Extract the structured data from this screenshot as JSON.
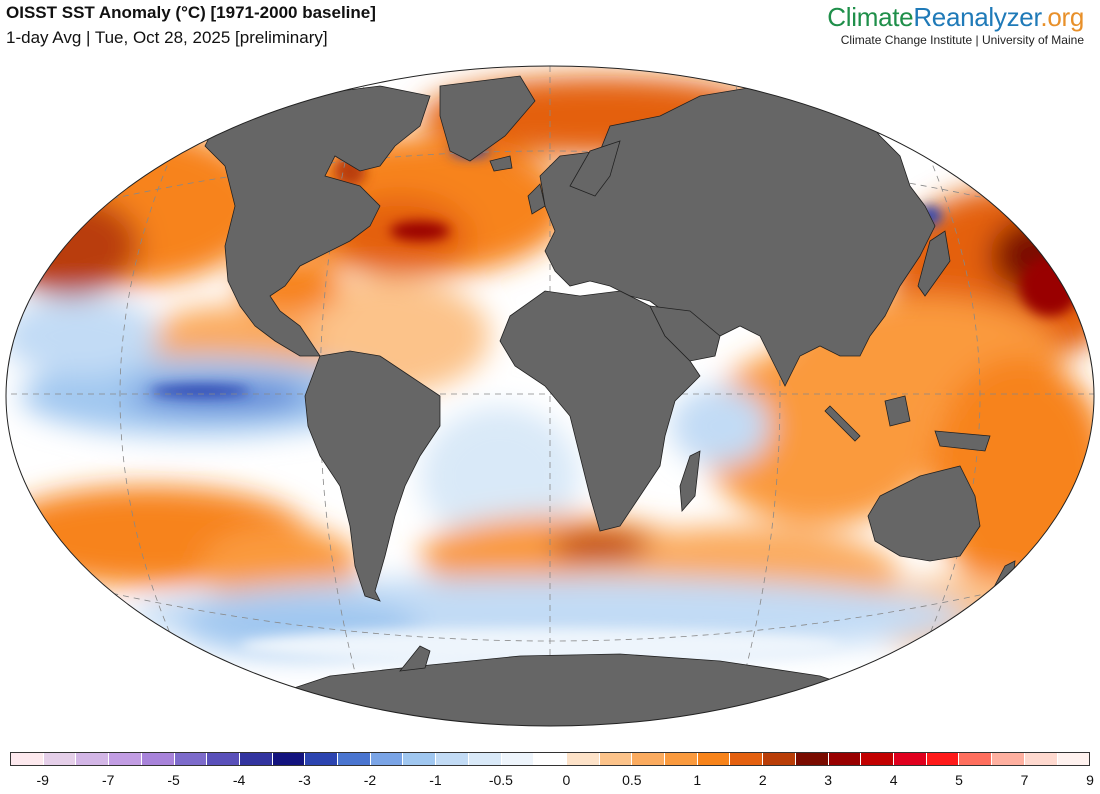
{
  "header": {
    "title": "OISST SST Anomaly (°C) [1971-2000 baseline]",
    "subtitle": "1-day Avg | Tue, Oct 28, 2025 [preliminary]",
    "brand_part1": "Climate",
    "brand_part2": "Reanalyzer",
    "brand_part3": ".org",
    "affiliation": "Climate Change Institute | University of Maine"
  },
  "colors": {
    "land": "#666666",
    "ocean_neutral": "#ffffff",
    "brand_green": "#1f8f4a",
    "brand_blue": "#1f7ab8",
    "brand_orange": "#e8902a"
  },
  "legend": {
    "swatches": [
      "#fde9ee",
      "#e5cfe9",
      "#d3b6e6",
      "#c29de3",
      "#a883da",
      "#7d6bcb",
      "#5a50ba",
      "#32349f",
      "#13137e",
      "#2c44b0",
      "#4a75d0",
      "#7aa4e6",
      "#a0c7f0",
      "#c2dbf5",
      "#d9e9f8",
      "#eef5fc",
      "#ffffff",
      "#fde2c8",
      "#fcc38a",
      "#fbab5f",
      "#fa9a3e",
      "#f7831a",
      "#e4600f",
      "#b93d07",
      "#7a0b00",
      "#990000",
      "#c20000",
      "#e0001e",
      "#ff1a1a",
      "#ff6f5e",
      "#ffb0a0",
      "#ffd9cf",
      "#fff2ef"
    ],
    "ticks": [
      {
        "label": "-9",
        "value": -9
      },
      {
        "label": "-7",
        "value": -7
      },
      {
        "label": "-5",
        "value": -5
      },
      {
        "label": "-4",
        "value": -4
      },
      {
        "label": "-3",
        "value": -3
      },
      {
        "label": "-2",
        "value": -2
      },
      {
        "label": "-1",
        "value": -1
      },
      {
        "label": "-0.5",
        "value": -0.5
      },
      {
        "label": "0",
        "value": 0
      },
      {
        "label": "0.5",
        "value": 0.5
      },
      {
        "label": "1",
        "value": 1
      },
      {
        "label": "2",
        "value": 2
      },
      {
        "label": "3",
        "value": 3
      },
      {
        "label": "4",
        "value": 4
      },
      {
        "label": "5",
        "value": 5
      },
      {
        "label": "7",
        "value": 7
      },
      {
        "label": "9",
        "value": 9
      }
    ]
  }
}
